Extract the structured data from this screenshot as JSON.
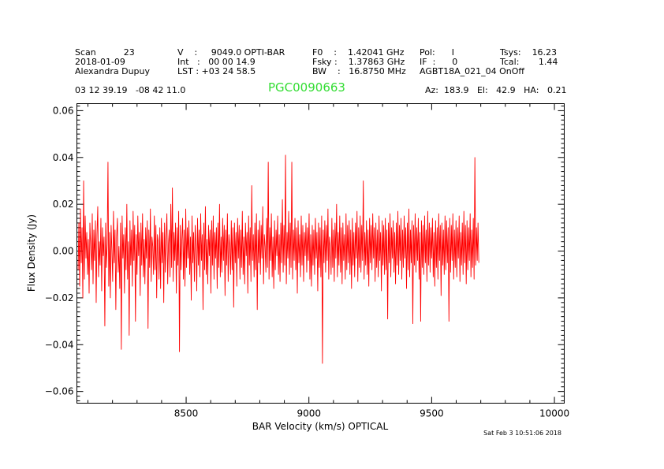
{
  "header": {
    "rows": [
      [
        "Scan          23",
        "V    :     9049.0 OPTI-BAR",
        "F0    :    1.42041 GHz",
        "Pol:      I",
        "Tsys:    16.23"
      ],
      [
        "2018-01-09",
        "Int   :   00 00 14.9",
        "Fsky :    1.37863 GHz",
        "IF  :      0",
        "Tcal:       1.44"
      ],
      [
        "Alexandra Dupuy",
        "LST : +03 24 58.5",
        "BW    :   16.8750 MHz",
        "AGBT18A_021_04 OnOff",
        ""
      ]
    ],
    "coords": "03 12 39.19   -08 42 11.0",
    "source": "PGC0090663",
    "source_color": "#33dd33",
    "azelha": "Az:  183.9   El:   42.9   HA:   0.21"
  },
  "timestamp": "Sat Feb  3 10:51:06 2018",
  "chart_data": {
    "type": "line",
    "xlabel": "BAR Velocity (km/s) OPTICAL",
    "ylabel": "Flux Density (Jy)",
    "xlim": [
      8055,
      10040
    ],
    "ylim": [
      -0.065,
      0.063
    ],
    "xticks": [
      8500,
      9000,
      9500,
      10000
    ],
    "xtick_labels": [
      "8500",
      "9000",
      "9500",
      "10000"
    ],
    "yticks": [
      -0.06,
      -0.04,
      -0.02,
      0.0,
      0.02,
      0.04,
      0.06
    ],
    "ytick_labels": [
      "−0.06",
      "−0.04",
      "−0.02",
      "0.00",
      "0.02",
      "0.04",
      "0.06"
    ],
    "grid": false,
    "series": [
      {
        "color": "#ff0000",
        "x_start": 8060,
        "x_step": 3.2,
        "y": [
          -0.008,
          0.012,
          -0.015,
          0.018,
          -0.005,
          0.01,
          -0.02,
          0.03,
          -0.012,
          0.015,
          -0.003,
          0.008,
          -0.01,
          0.005,
          -0.018,
          0.012,
          0.002,
          -0.008,
          0.016,
          -0.014,
          0.009,
          -0.004,
          0.013,
          -0.022,
          0.007,
          0.019,
          -0.011,
          0.004,
          -0.006,
          0.014,
          -0.017,
          0.01,
          -0.002,
          0.006,
          -0.032,
          0.012,
          -0.007,
          0.003,
          0.038,
          -0.015,
          0.008,
          -0.02,
          0.011,
          0.0,
          -0.013,
          0.017,
          -0.005,
          0.009,
          -0.025,
          0.006,
          0.014,
          -0.009,
          0.002,
          -0.016,
          0.012,
          -0.042,
          0.015,
          -0.003,
          0.007,
          -0.018,
          0.01,
          -0.008,
          0.02,
          -0.012,
          0.004,
          -0.036,
          0.013,
          -0.006,
          0.009,
          -0.015,
          0.017,
          -0.004,
          0.011,
          -0.03,
          0.007,
          -0.01,
          0.015,
          -0.002,
          0.008,
          -0.019,
          0.012,
          -0.006,
          0.016,
          -0.011,
          0.005,
          -0.014,
          0.01,
          -0.003,
          0.013,
          -0.033,
          0.009,
          -0.007,
          0.018,
          -0.013,
          0.006,
          0.002,
          -0.01,
          0.015,
          -0.008,
          0.011,
          -0.02,
          0.007,
          0.004,
          -0.012,
          0.01,
          -0.016,
          0.014,
          -0.005,
          0.008,
          -0.022,
          0.012,
          -0.009,
          0.006,
          0.016,
          -0.014,
          0.003,
          0.009,
          -0.011,
          0.02,
          -0.007,
          0.027,
          -0.013,
          0.008,
          -0.004,
          0.012,
          -0.018,
          0.01,
          -0.006,
          0.017,
          -0.043,
          0.011,
          -0.008,
          0.005,
          0.014,
          -0.012,
          0.009,
          -0.015,
          0.018,
          -0.007,
          0.01,
          -0.003,
          0.013,
          -0.01,
          0.006,
          -0.021,
          0.015,
          -0.005,
          0.008,
          -0.013,
          0.011,
          0.002,
          -0.017,
          0.014,
          -0.006,
          0.009,
          -0.011,
          0.016,
          -0.004,
          0.007,
          -0.025,
          0.012,
          -0.008,
          0.019,
          -0.01,
          0.005,
          -0.014,
          0.011,
          -0.002,
          0.009,
          -0.018,
          0.013,
          -0.006,
          0.015,
          -0.012,
          0.008,
          -0.003,
          0.01,
          -0.016,
          0.012,
          -0.007,
          0.02,
          -0.011,
          0.006,
          -0.009,
          0.014,
          -0.004,
          0.011,
          -0.019,
          0.009,
          -0.006,
          0.016,
          -0.013,
          0.007,
          0.002,
          -0.01,
          0.013,
          -0.008,
          0.01,
          -0.024,
          0.012,
          -0.005,
          0.008,
          -0.015,
          0.014,
          -0.003,
          0.011,
          -0.012,
          0.009,
          -0.007,
          0.017,
          -0.01,
          0.006,
          -0.014,
          0.012,
          -0.002,
          0.008,
          -0.018,
          0.015,
          -0.006,
          0.01,
          -0.013,
          0.028,
          -0.004,
          0.007,
          -0.011,
          0.012,
          -0.008,
          0.016,
          -0.025,
          0.009,
          -0.005,
          0.013,
          -0.01,
          0.011,
          -0.003,
          0.019,
          -0.014,
          0.007,
          0.002,
          -0.009,
          0.014,
          -0.007,
          0.038,
          -0.012,
          0.01,
          -0.004,
          0.016,
          -0.011,
          0.006,
          -0.016,
          0.013,
          -0.008,
          0.009,
          -0.002,
          0.015,
          -0.01,
          0.007,
          -0.013,
          0.012,
          -0.005,
          0.022,
          -0.009,
          0.011,
          -0.006,
          0.041,
          -0.014,
          0.008,
          -0.003,
          0.017,
          -0.01,
          0.012,
          -0.007,
          0.038,
          -0.012,
          0.009,
          -0.004,
          0.014,
          -0.008,
          0.01,
          -0.018,
          0.013,
          -0.005,
          0.007,
          -0.011,
          0.015,
          -0.006,
          0.011,
          -0.013,
          0.008,
          -0.002,
          0.012,
          -0.009,
          0.01,
          -0.004,
          0.016,
          -0.012,
          0.007,
          -0.015,
          0.011,
          -0.006,
          0.009,
          -0.01,
          0.014,
          -0.003,
          0.008,
          -0.017,
          0.012,
          -0.007,
          0.01,
          -0.011,
          0.015,
          -0.048,
          0.009,
          -0.005,
          0.013,
          -0.009,
          0.011,
          -0.004,
          0.018,
          -0.012,
          0.006,
          0.002,
          -0.01,
          0.014,
          -0.007,
          0.009,
          -0.013,
          0.012,
          -0.003,
          0.02,
          -0.011,
          0.008,
          -0.006,
          0.015,
          -0.009,
          0.01,
          -0.014,
          0.012,
          -0.004,
          0.007,
          -0.012,
          0.016,
          -0.008,
          0.011,
          -0.005,
          0.013,
          -0.01,
          0.009,
          -0.016,
          0.014,
          -0.006,
          0.008,
          -0.011,
          0.012,
          -0.003,
          0.017,
          -0.013,
          0.01,
          -0.007,
          0.015,
          -0.009,
          0.011,
          -0.004,
          0.03,
          -0.012,
          0.008,
          -0.006,
          0.013,
          -0.01,
          0.009,
          -0.015,
          0.014,
          -0.005,
          0.011,
          -0.008,
          0.016,
          -0.003,
          0.01,
          -0.013,
          0.012,
          -0.007,
          0.009,
          -0.011,
          0.015,
          -0.004,
          0.008,
          -0.017,
          0.013,
          -0.006,
          0.011,
          -0.01,
          0.014,
          -0.008,
          0.009,
          -0.029,
          0.012,
          -0.005,
          0.016,
          -0.011,
          0.01,
          -0.003,
          0.013,
          -0.009,
          0.008,
          -0.014,
          0.012,
          -0.006,
          0.017,
          -0.01,
          0.011,
          -0.004,
          0.014,
          -0.012,
          0.009,
          -0.007,
          0.015,
          -0.003,
          0.01,
          -0.016,
          0.012,
          -0.008,
          0.018,
          -0.011,
          0.009,
          -0.005,
          0.013,
          -0.031,
          0.011,
          -0.006,
          0.016,
          -0.009,
          0.01,
          -0.004,
          0.014,
          -0.012,
          0.008,
          -0.03,
          0.013,
          -0.007,
          0.011,
          -0.01,
          0.015,
          -0.005,
          0.009,
          -0.013,
          0.017,
          -0.006,
          0.012,
          -0.009,
          0.01,
          -0.003,
          0.014,
          -0.011,
          0.008,
          -0.015,
          0.013,
          -0.007,
          0.01,
          -0.012,
          0.016,
          -0.004,
          0.011,
          -0.019,
          0.012,
          -0.006,
          0.009,
          -0.01,
          0.015,
          -0.008,
          0.013,
          -0.005,
          0.01,
          -0.03,
          0.014,
          -0.009,
          0.011,
          -0.004,
          0.016,
          -0.012,
          0.009,
          -0.007,
          0.013,
          -0.011,
          0.01,
          -0.003,
          0.015,
          -0.013,
          0.008,
          -0.006,
          0.012,
          -0.01,
          0.017,
          -0.005,
          0.011,
          -0.014,
          0.013,
          -0.008,
          0.01,
          -0.004,
          0.016,
          -0.011,
          0.009,
          -0.007,
          0.014,
          -0.012,
          0.04,
          -0.006,
          0.01,
          -0.004,
          0.012,
          -0.005
        ]
      }
    ]
  }
}
